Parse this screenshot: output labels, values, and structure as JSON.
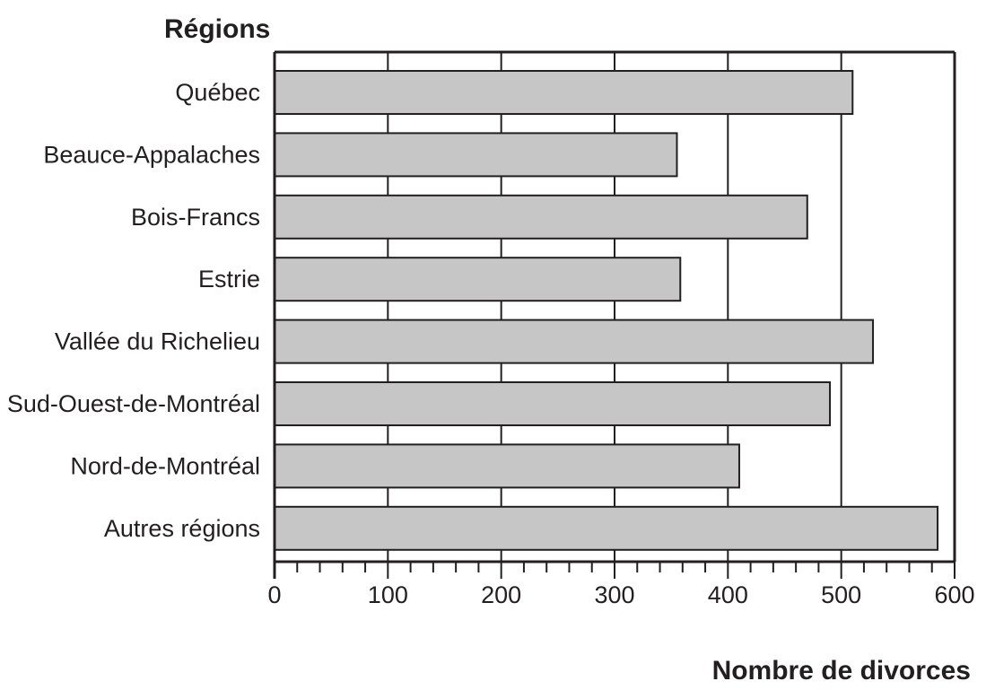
{
  "chart_data": {
    "type": "bar",
    "orientation": "horizontal",
    "title": "",
    "ylabel": "Régions",
    "xlabel": "Nombre de divorces",
    "categories": [
      "Québec",
      "Beauce-Appalaches",
      "Bois-Francs",
      "Estrie",
      "Vallée du Richelieu",
      "Sud-Ouest-de-Montréal",
      "Nord-de-Montréal",
      "Autres régions"
    ],
    "values": [
      510,
      355,
      470,
      358,
      528,
      490,
      410,
      585
    ],
    "xlim": [
      0,
      600
    ],
    "major_ticks": [
      0,
      100,
      200,
      300,
      400,
      500,
      600
    ],
    "tick_labels": [
      "0",
      "100",
      "200",
      "300",
      "400",
      "500",
      "600"
    ],
    "minor_tick_step": 20,
    "grid": "vertical major gridlines",
    "legend": "none",
    "bar_color": "#c6c6c6",
    "line_color": "#231f20"
  }
}
